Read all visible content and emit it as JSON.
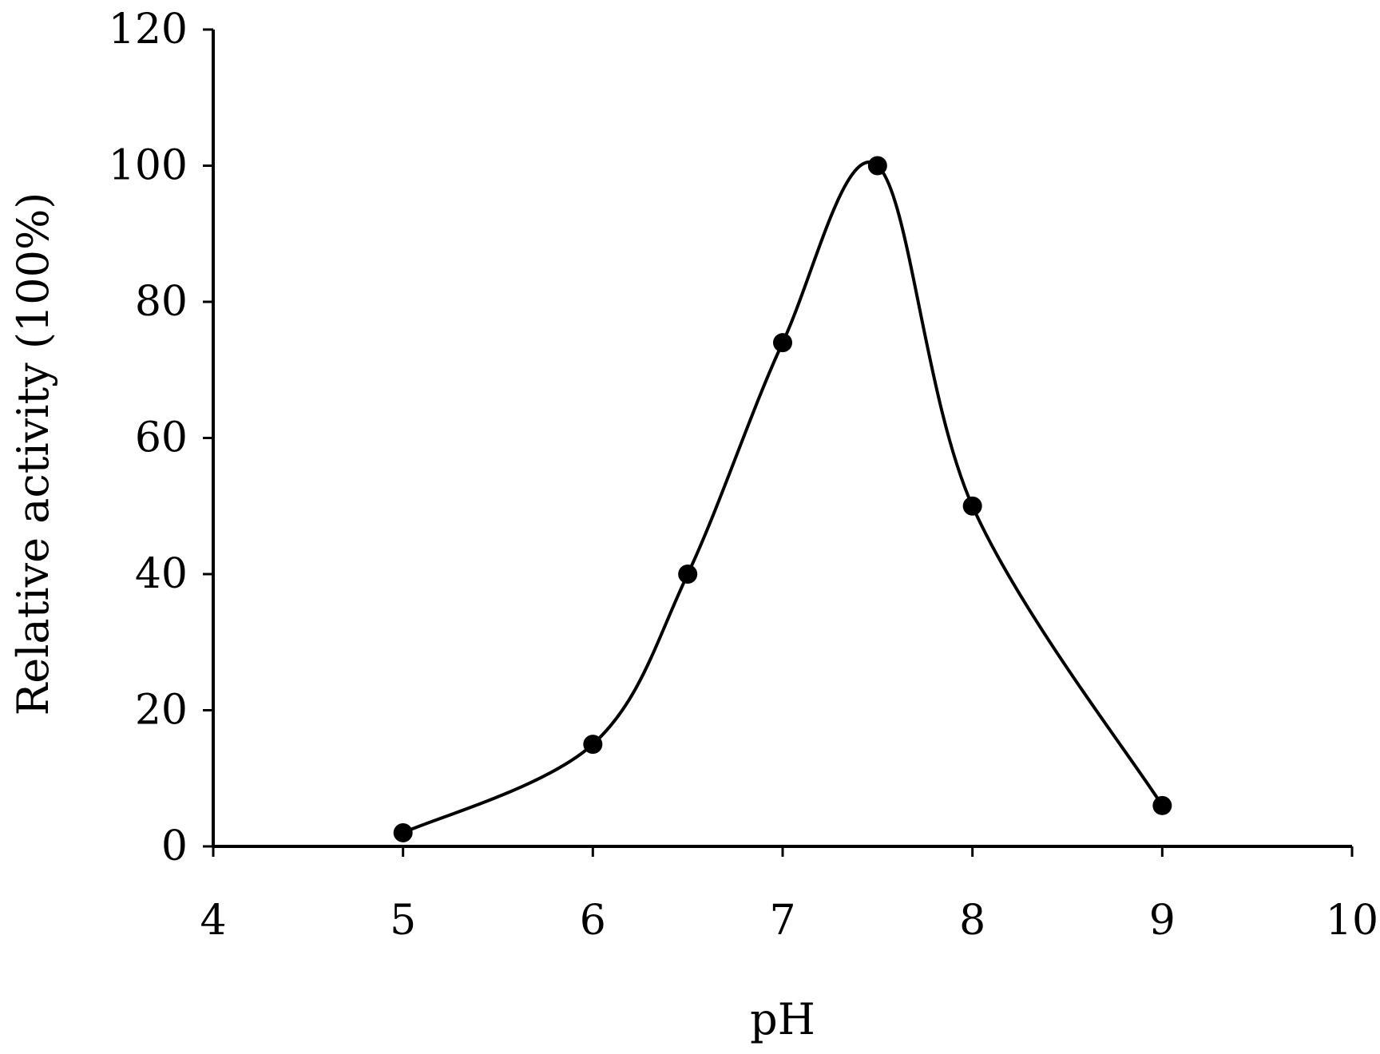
{
  "chart_data": {
    "type": "scatter",
    "title": "",
    "xlabel": "pH",
    "ylabel": "Relative activity (100%)",
    "xlim": [
      4,
      10
    ],
    "ylim": [
      0,
      120
    ],
    "xticks": [
      4,
      5,
      6,
      7,
      8,
      9,
      10
    ],
    "yticks": [
      0,
      20,
      40,
      60,
      80,
      100,
      120
    ],
    "grid": false,
    "smooth_line": true,
    "series": [
      {
        "x": [
          5,
          6,
          6.5,
          7,
          7.5,
          8,
          9
        ],
        "y": [
          2,
          15,
          40,
          74,
          100,
          50,
          6
        ],
        "color": "#000000",
        "marker": "filled-circle"
      }
    ]
  }
}
